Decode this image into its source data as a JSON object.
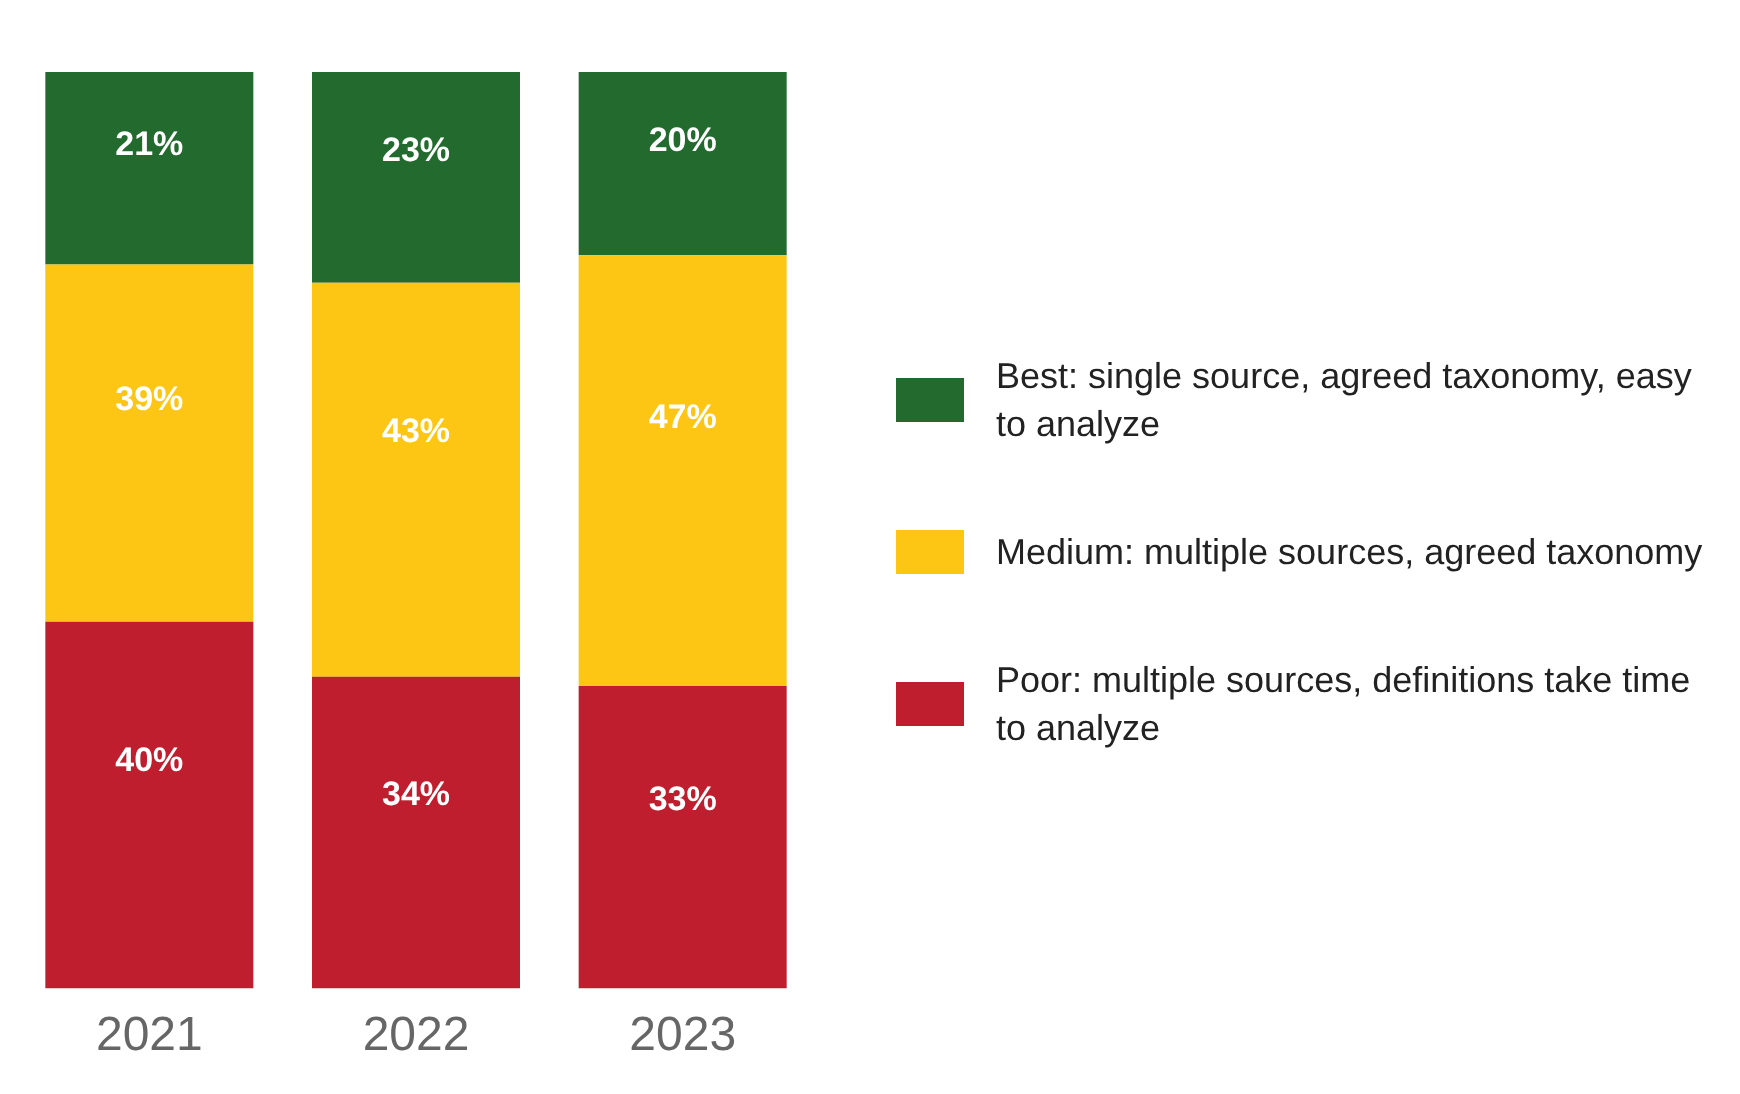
{
  "chart_data": {
    "type": "bar",
    "stacked": true,
    "categories": [
      "2021",
      "2022",
      "2023"
    ],
    "series": [
      {
        "name": "Poor: multiple sources, definitions take time to analyze",
        "color": "#be1e2d",
        "values": [
          40,
          34,
          33
        ],
        "value_labels": [
          "40%",
          "34%",
          "33%"
        ]
      },
      {
        "name": "Medium: multiple sources, agreed taxonomy",
        "color": "#fdc614",
        "values": [
          39,
          43,
          47
        ],
        "value_labels": [
          "39%",
          "43%",
          "47%"
        ]
      },
      {
        "name": "Best: single source, agreed taxonomy, easy to analyze",
        "color": "#226a2e",
        "values": [
          21,
          23,
          20
        ],
        "value_labels": [
          "21%",
          "23%",
          "20%"
        ]
      }
    ],
    "legend": "right",
    "tick_labels": "x"
  }
}
